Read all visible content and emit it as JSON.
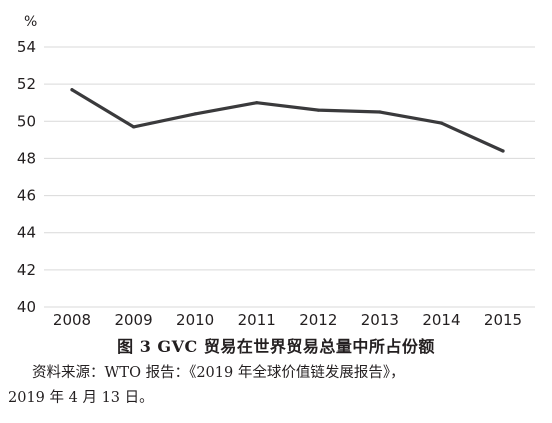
{
  "chart_data": {
    "type": "line",
    "unit": "%",
    "x": [
      "2008",
      "2009",
      "2010",
      "2011",
      "2012",
      "2013",
      "2014",
      "2015"
    ],
    "series": [
      {
        "values": [
          51.7,
          49.7,
          50.4,
          51.0,
          50.6,
          50.5,
          49.9,
          48.4
        ]
      }
    ],
    "yticks": [
      "40",
      "42",
      "44",
      "46",
      "48",
      "50",
      "52",
      "54"
    ],
    "ylim": [
      40,
      54
    ],
    "grid": "horizontal",
    "line_color": "#3a3a3c",
    "grid_color": "#d9d9d9"
  },
  "caption": "图 3   GVC 贸易在世界贸易总量中所占份额",
  "source_line1": "资料来源：WTO 报告：《2019 年全球价值链发展报告》，",
  "source_line2": "2019 年 4 月 13 日。"
}
